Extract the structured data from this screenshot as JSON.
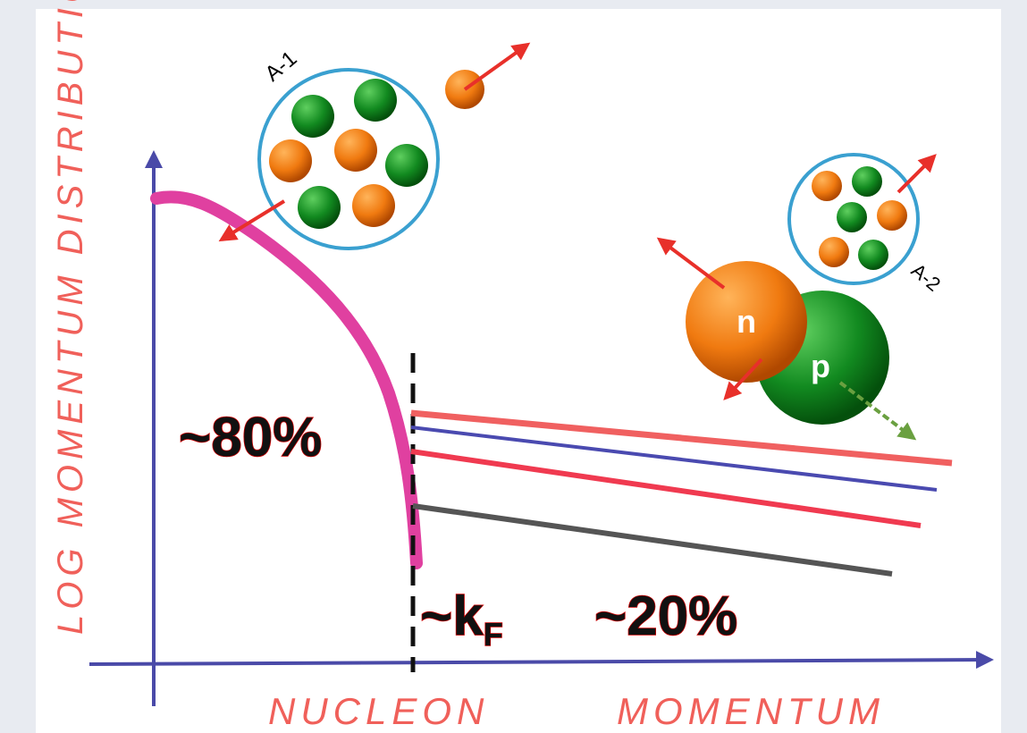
{
  "axes": {
    "y_label": "LOG MOMENTUM DISTRIBUTION",
    "x_label": [
      "NUCLEON",
      "MOMENTUM"
    ]
  },
  "annotations": {
    "low": "~80%",
    "kf": "~k",
    "kf_sub": "F",
    "high": "~20%"
  },
  "clusters": {
    "a1": "A-1",
    "a2": "A-2"
  },
  "nucleons": {
    "n": "n",
    "p": "p"
  }
}
